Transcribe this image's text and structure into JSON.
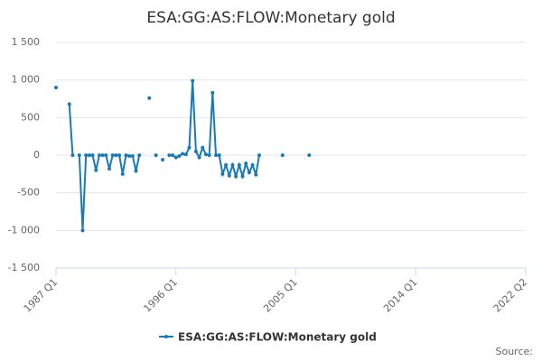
{
  "chart_data": {
    "type": "line",
    "title": "ESA:GG:AS:FLOW:Monetary gold",
    "source": "Source:",
    "x": [
      "1987 Q1",
      "1987 Q2",
      "1987 Q3",
      "1987 Q4",
      "1988 Q1",
      "1988 Q2",
      "1988 Q3",
      "1988 Q4",
      "1989 Q1",
      "1989 Q2",
      "1989 Q3",
      "1989 Q4",
      "1990 Q1",
      "1990 Q2",
      "1990 Q3",
      "1990 Q4",
      "1991 Q1",
      "1991 Q2",
      "1991 Q3",
      "1991 Q4",
      "1992 Q1",
      "1992 Q2",
      "1992 Q3",
      "1992 Q4",
      "1993 Q1",
      "1993 Q2",
      "1993 Q3",
      "1993 Q4",
      "1994 Q1",
      "1994 Q2",
      "1994 Q3",
      "1994 Q4",
      "1995 Q1",
      "1995 Q2",
      "1995 Q3",
      "1995 Q4",
      "1996 Q1",
      "1996 Q2",
      "1996 Q3",
      "1996 Q4",
      "1997 Q1",
      "1997 Q2",
      "1997 Q3",
      "1997 Q4",
      "1998 Q1",
      "1998 Q2",
      "1998 Q3",
      "1998 Q4",
      "1999 Q1",
      "1999 Q2",
      "1999 Q3",
      "1999 Q4",
      "2000 Q1",
      "2000 Q2",
      "2000 Q3",
      "2000 Q4",
      "2001 Q1",
      "2001 Q2",
      "2001 Q3",
      "2001 Q4",
      "2002 Q1",
      "2002 Q2",
      "2002 Q3",
      "2002 Q4",
      "2003 Q1",
      "2003 Q2",
      "2003 Q3",
      "2003 Q4",
      "2004 Q1",
      "2004 Q2",
      "2004 Q3",
      "2004 Q4",
      "2005 Q1",
      "2005 Q2",
      "2005 Q3",
      "2005 Q4",
      "2006 Q1"
    ],
    "series": [
      {
        "name": "ESA:GG:AS:FLOW:Monetary gold",
        "color": "#1a7ab5",
        "values": [
          900,
          null,
          null,
          null,
          680,
          0,
          null,
          0,
          -1000,
          0,
          0,
          0,
          -200,
          0,
          0,
          0,
          -180,
          0,
          0,
          0,
          -250,
          0,
          -10,
          -10,
          -210,
          0,
          null,
          null,
          760,
          null,
          0,
          null,
          -60,
          null,
          0,
          0,
          -30,
          -10,
          20,
          10,
          100,
          990,
          50,
          -30,
          100,
          10,
          0,
          830,
          0,
          0,
          -250,
          -130,
          -270,
          -130,
          -280,
          -130,
          -280,
          -110,
          -230,
          -130,
          -260,
          0,
          null,
          null,
          null,
          null,
          null,
          null,
          0,
          null,
          null,
          null,
          null,
          null,
          null,
          null,
          0
        ]
      }
    ],
    "xlim": [
      "1987 Q1",
      "2022 Q2"
    ],
    "xticks": [
      "1987 Q1",
      "1996 Q1",
      "2005 Q1",
      "2014 Q1",
      "2022 Q2"
    ],
    "ylim": [
      -1500,
      1500
    ],
    "yticks": [
      {
        "value": -1500,
        "label": "-1 500"
      },
      {
        "value": -1000,
        "label": "-1 000"
      },
      -500,
      0,
      500,
      {
        "value": 1000,
        "label": "1 000"
      },
      {
        "value": 1500,
        "label": "1 500"
      }
    ],
    "grid": true
  }
}
